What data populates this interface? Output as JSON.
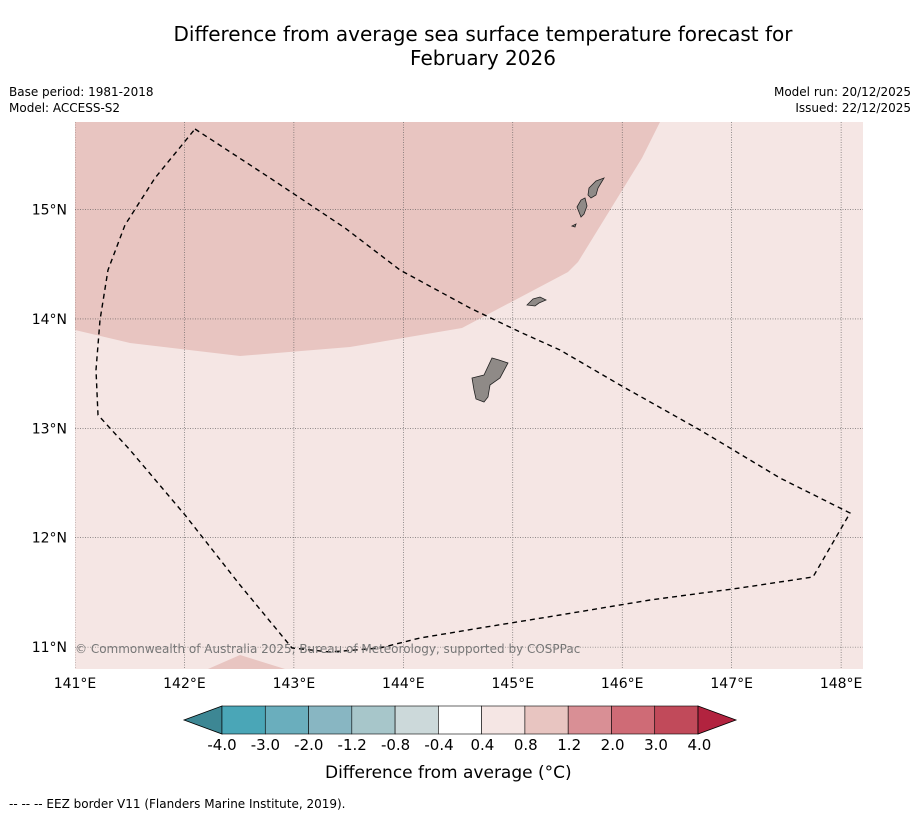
{
  "title_line1": "Difference from average sea surface temperature forecast for",
  "title_line2": "February 2026",
  "meta_left": {
    "base_period": "Base period: 1981-2018",
    "model": "Model: ACCESS-S2"
  },
  "meta_right": {
    "model_run": "Model run: 20/12/2025",
    "issued": "Issued: 22/12/2025"
  },
  "map": {
    "lat_labels": [
      "15°N",
      "14°N",
      "13°N",
      "12°N",
      "11°N"
    ],
    "lat_values": [
      15,
      14,
      13,
      12,
      11
    ],
    "lon_labels": [
      "141°E",
      "142°E",
      "143°E",
      "144°E",
      "145°E",
      "146°E",
      "147°E",
      "148°E"
    ],
    "lon_values": [
      141,
      142,
      143,
      144,
      145,
      146,
      147,
      148
    ],
    "lon_range": [
      141,
      148.2
    ],
    "lat_range": [
      10.8,
      15.8
    ],
    "copyright": "© Commonwealth of Australia 2025, Bureau of Meteorology, supported by COSPPac",
    "colors": {
      "background_anomaly": "#f5e6e4",
      "warm_anomaly": "#e8c5c1",
      "land": "#8f8a87"
    }
  },
  "colorbar": {
    "tick_labels": [
      "-4.0",
      "-3.0",
      "-2.0",
      "-1.2",
      "-0.8",
      "-0.4",
      "0.4",
      "0.8",
      "1.2",
      "2.0",
      "3.0",
      "4.0"
    ],
    "colors": [
      "#4aa6b7",
      "#6aaebd",
      "#88b6c2",
      "#a7c6ca",
      "#ccd9da",
      "#ffffff",
      "#f5e6e4",
      "#e8c5c1",
      "#d98f95",
      "#cf6b76",
      "#c14a5a"
    ],
    "under_color": "#3d8794",
    "over_color": "#b2233f",
    "label": "Difference from average (°C)"
  },
  "legend_note": "--  --  -- EEZ border V11 (Flanders Marine Institute, 2019)."
}
